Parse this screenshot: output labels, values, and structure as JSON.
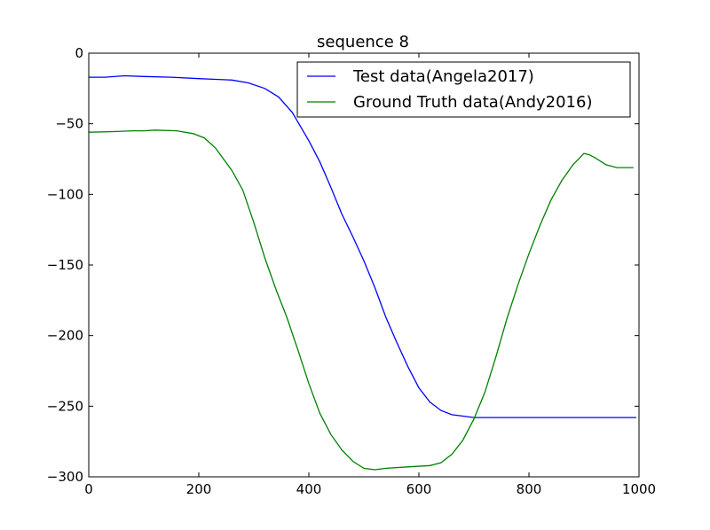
{
  "chart_data": {
    "type": "line",
    "title": "sequence 8",
    "xlabel": "",
    "ylabel": "",
    "xlim": [
      0,
      1000
    ],
    "ylim": [
      -300,
      0
    ],
    "xticks": [
      0,
      200,
      400,
      600,
      800,
      1000
    ],
    "yticks": [
      0,
      -50,
      -100,
      -150,
      -200,
      -250,
      -300
    ],
    "grid": false,
    "legend_position": "top-right",
    "series": [
      {
        "name": "Test data(Angela2017)",
        "color": "#0000ff",
        "x": [
          0,
          30,
          65,
          100,
          150,
          200,
          230,
          260,
          290,
          320,
          345,
          370,
          385,
          400,
          420,
          440,
          460,
          480,
          500,
          520,
          540,
          560,
          580,
          600,
          620,
          640,
          660,
          680,
          700,
          750,
          800,
          850,
          900,
          950,
          995
        ],
        "y": [
          -17,
          -17,
          -16,
          -16.5,
          -17,
          -18,
          -18.5,
          -19,
          -21,
          -25,
          -31,
          -42,
          -52,
          -62,
          -77,
          -95,
          -114,
          -130,
          -147,
          -166,
          -187,
          -205,
          -222,
          -237,
          -247,
          -253,
          -256,
          -257,
          -258,
          -258,
          -258,
          -258,
          -258,
          -258,
          -258
        ]
      },
      {
        "name": "Ground Truth data(Andy2016)",
        "color": "#008000",
        "x": [
          0,
          50,
          80,
          100,
          120,
          160,
          190,
          210,
          230,
          260,
          280,
          300,
          320,
          340,
          360,
          380,
          400,
          420,
          440,
          460,
          480,
          500,
          520,
          540,
          580,
          620,
          640,
          660,
          680,
          700,
          720,
          740,
          760,
          780,
          800,
          820,
          840,
          860,
          880,
          900,
          910,
          920,
          940,
          960,
          990
        ],
        "y": [
          -56,
          -55.5,
          -55,
          -55,
          -54.5,
          -55,
          -57,
          -60,
          -67,
          -83,
          -97,
          -120,
          -145,
          -167,
          -187,
          -210,
          -234,
          -255,
          -270,
          -281,
          -289,
          -294,
          -295,
          -294,
          -293,
          -292,
          -290,
          -284,
          -274,
          -259,
          -240,
          -215,
          -188,
          -164,
          -142,
          -122,
          -104,
          -90,
          -79,
          -71,
          -72,
          -74,
          -79,
          -81,
          -81
        ]
      }
    ]
  }
}
